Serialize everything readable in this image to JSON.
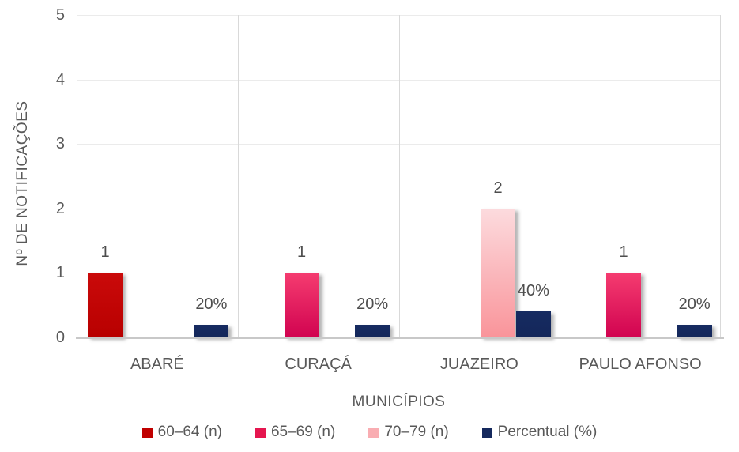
{
  "chart_data": {
    "type": "bar",
    "title": "",
    "xlabel": "MUNICÍPIOS",
    "ylabel": "Nº DE NOTIFICAÇÕES",
    "ylim": [
      0,
      5
    ],
    "yticks": [
      0,
      1,
      2,
      3,
      4,
      5
    ],
    "categories": [
      "ABARÉ",
      "CURAÇÁ",
      "JUAZEIRO",
      "PAULO AFONSO"
    ],
    "series": [
      {
        "name": "60–64 (n)",
        "values": [
          1,
          null,
          null,
          null
        ],
        "data_labels": [
          "1",
          "",
          "",
          ""
        ],
        "color": "#c00000",
        "gradient_top": "#ca0a0a",
        "gradient_bottom": "#b80000"
      },
      {
        "name": "65–69 (n)",
        "values": [
          null,
          1,
          null,
          1
        ],
        "data_labels": [
          "",
          "1",
          "",
          "1"
        ],
        "color": "#e5164f",
        "gradient_top": "#f53c70",
        "gradient_bottom": "#d10350"
      },
      {
        "name": "70–79 (n)",
        "values": [
          null,
          null,
          2,
          null
        ],
        "data_labels": [
          "",
          "",
          "2",
          ""
        ],
        "color": "#f9adb2",
        "gradient_top": "#fcdbde",
        "gradient_bottom": "#f9949a"
      },
      {
        "name": "Percentual (%)",
        "values": [
          0.2,
          0.2,
          0.4,
          0.2
        ],
        "data_labels": [
          "20%",
          "20%",
          "40%",
          "20%"
        ],
        "color": "#15295d",
        "gradient_top": "#162b61",
        "gradient_bottom": "#14275a"
      }
    ],
    "grid": true,
    "legend_position": "bottom"
  },
  "colors": {
    "axis_text": "#595959",
    "data_label_text": "#4d4d4d",
    "h_gridline": "#ebebeb",
    "v_gridline": "#d9d9d9",
    "axis_line": "#c8c8c8",
    "background": "#ffffff"
  }
}
